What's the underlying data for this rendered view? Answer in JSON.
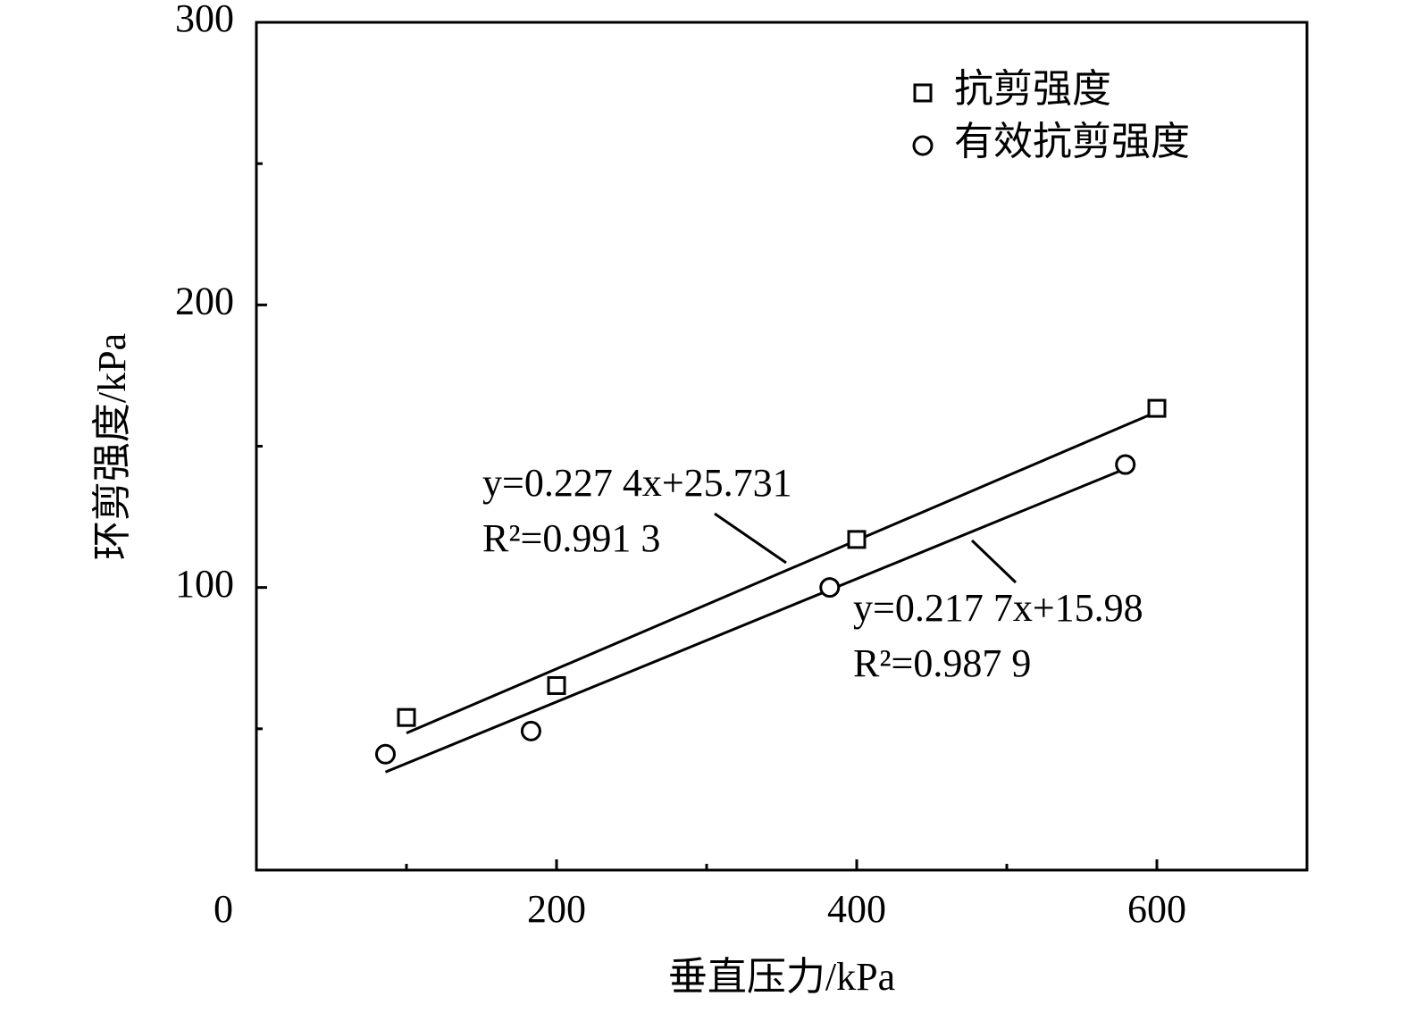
{
  "chart_data": {
    "type": "scatter",
    "x_label": "垂直压力/kPa",
    "y_label": "环剪强度/kPa",
    "xlim": [
      0,
      700
    ],
    "ylim": [
      0,
      300
    ],
    "xticks": [
      0,
      200,
      400,
      600
    ],
    "xticks_minor": [
      100,
      300,
      500
    ],
    "yticks": [
      100,
      200,
      300
    ],
    "yticks_minor": [
      50,
      150,
      250
    ],
    "legend": "upper right",
    "series": [
      {
        "name": "抗剪强度",
        "marker": "square",
        "color": "#000000",
        "x": [
          100,
          200,
          400,
          600
        ],
        "values": [
          54,
          65.3,
          117,
          163.4
        ]
      },
      {
        "name": "有效抗剪强度",
        "marker": "circle",
        "color": "#000000",
        "x": [
          86,
          183,
          382,
          579
        ],
        "values": [
          41,
          49.2,
          100,
          143.5
        ]
      }
    ],
    "fits": [
      {
        "equation": "y=0.227 4x+25.731",
        "r2_label": "R²=0.991 3",
        "slope": 0.2274,
        "intercept": 25.731,
        "x": [
          100,
          600
        ]
      },
      {
        "equation": "y=0.217 7x+15.98",
        "r2_label": "R²=0.987 9",
        "slope": 0.2177,
        "intercept": 15.98,
        "x": [
          86,
          579
        ]
      }
    ]
  }
}
